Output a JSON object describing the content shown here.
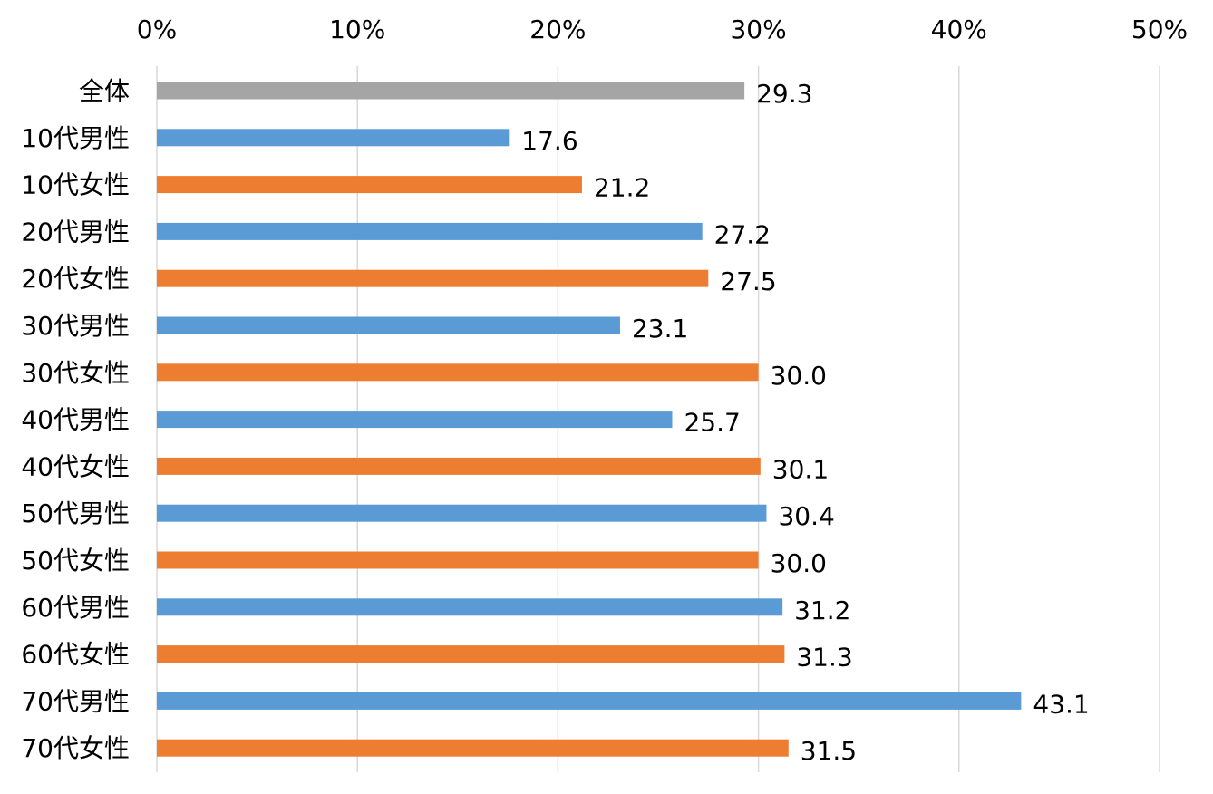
{
  "chart_data": {
    "type": "bar",
    "orientation": "horizontal",
    "xlim": [
      0,
      50
    ],
    "x_ticks": [
      "0%",
      "10%",
      "20%",
      "30%",
      "40%",
      "50%"
    ],
    "grid": true,
    "legend": "none",
    "colors": {
      "all": "#a5a5a5",
      "male": "#5b9bd5",
      "female": "#ed7d31"
    },
    "categories": [
      "全体",
      "10代男性",
      "10代女性",
      "20代男性",
      "20代女性",
      "30代男性",
      "30代女性",
      "40代男性",
      "40代女性",
      "50代男性",
      "50代女性",
      "60代男性",
      "60代女性",
      "70代男性",
      "70代女性"
    ],
    "values": [
      29.3,
      17.6,
      21.2,
      27.2,
      27.5,
      23.1,
      30.0,
      25.7,
      30.1,
      30.4,
      30.0,
      31.2,
      31.3,
      43.1,
      31.5
    ],
    "value_labels": [
      "29.3",
      "17.6",
      "21.2",
      "27.2",
      "27.5",
      "23.1",
      "30.0",
      "25.7",
      "30.1",
      "30.4",
      "30.0",
      "31.2",
      "31.3",
      "43.1",
      "31.5"
    ],
    "bar_groups": [
      "all",
      "male",
      "female",
      "male",
      "female",
      "male",
      "female",
      "male",
      "female",
      "male",
      "female",
      "male",
      "female",
      "male",
      "female"
    ]
  }
}
